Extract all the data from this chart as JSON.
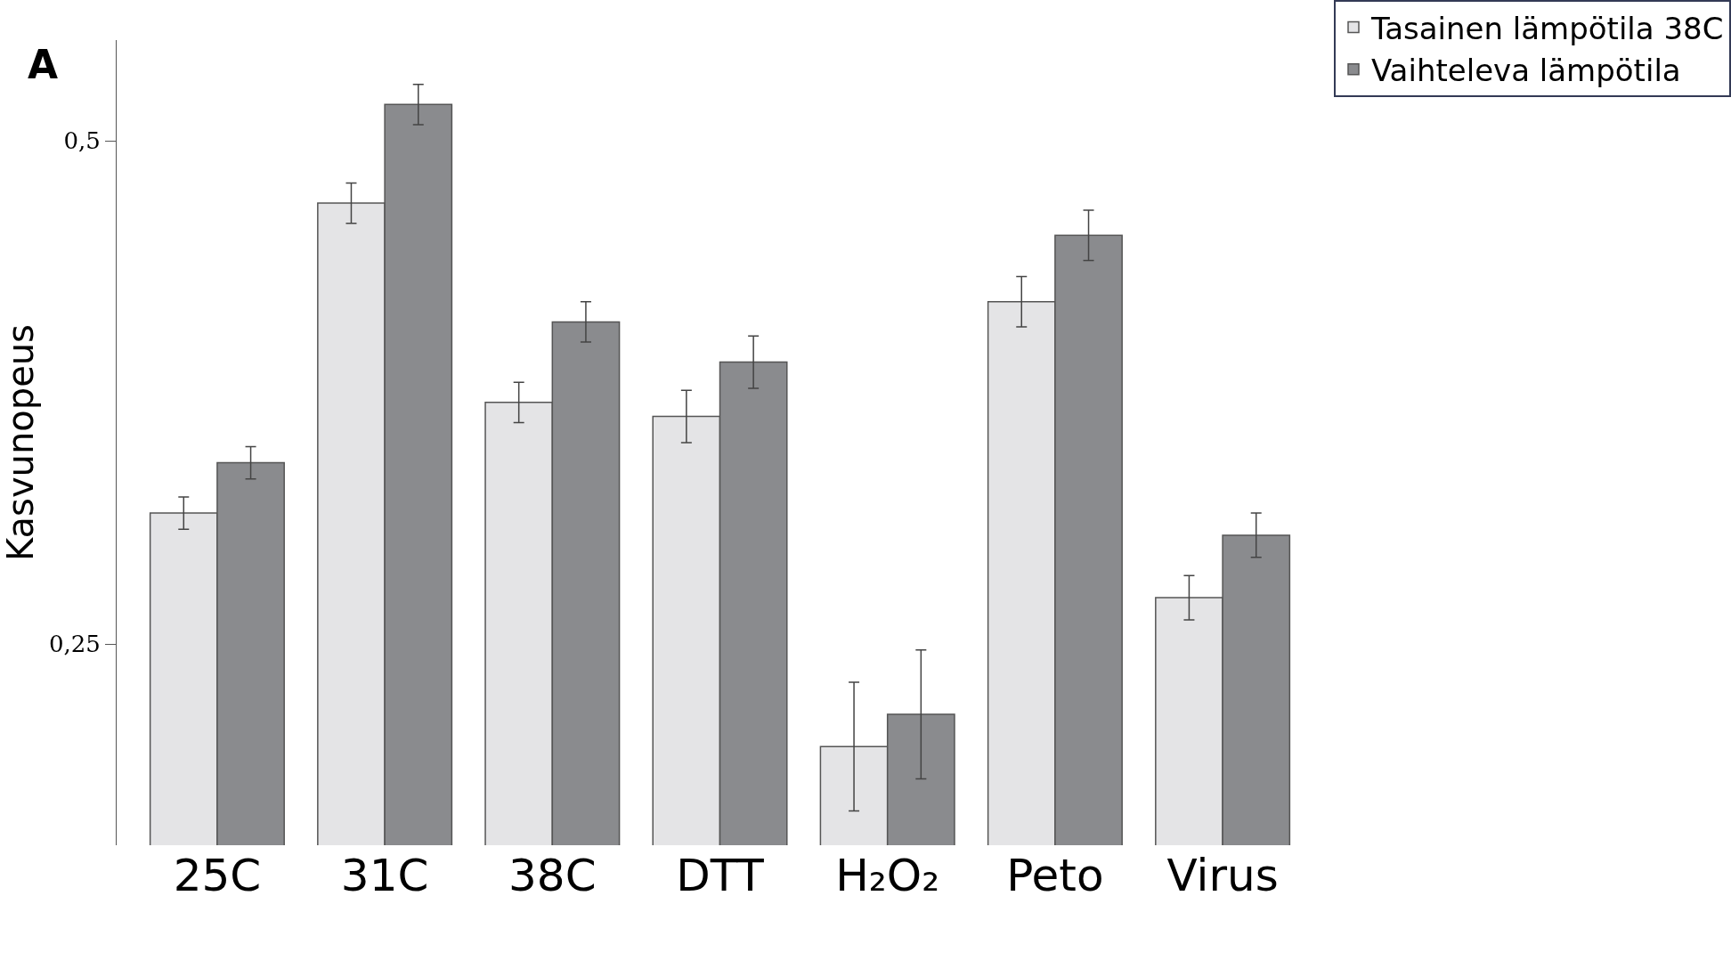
{
  "chart_data": {
    "type": "bar",
    "ylabel": "Kasvunopeus",
    "annotations": [
      "A"
    ],
    "categories": [
      "25C",
      "31C",
      "38C",
      "DTT",
      "H₂O₂",
      "Peto",
      "Virus"
    ],
    "series": [
      {
        "name": "Tasainen lämpötila 38C",
        "color": "#e4e4e6",
        "values": [
          0.315,
          0.469,
          0.37,
          0.363,
          0.199,
          0.42,
          0.273
        ],
        "errors": [
          0.008,
          0.01,
          0.01,
          0.013,
          0.032,
          0.0125,
          0.011
        ]
      },
      {
        "name": "Vaihteleva lämpötila",
        "color": "#8a8b8e",
        "values": [
          0.34,
          0.518,
          0.41,
          0.39,
          0.215,
          0.453,
          0.304
        ],
        "errors": [
          0.008,
          0.01,
          0.01,
          0.013,
          0.032,
          0.0125,
          0.011
        ]
      }
    ],
    "ylim": [
      0.15,
      0.55
    ],
    "yticks": [
      {
        "value": 0.25,
        "label": "0,25"
      },
      {
        "value": 0.5,
        "label": "0,5"
      }
    ],
    "legend": "top right"
  }
}
